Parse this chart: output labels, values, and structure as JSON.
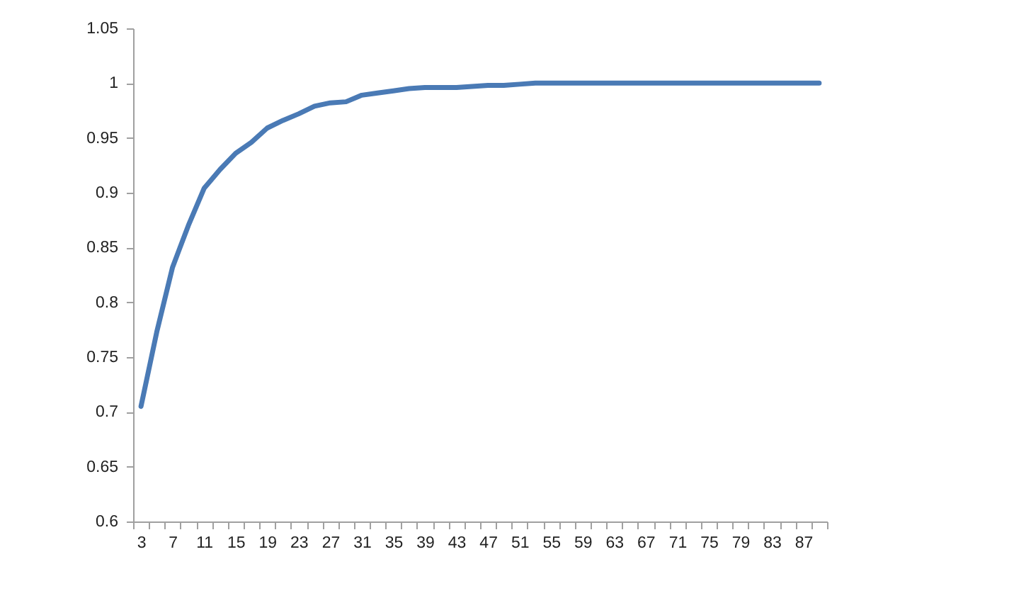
{
  "chart_data": {
    "type": "line",
    "categories": [
      "3",
      null,
      "7",
      null,
      "11",
      null,
      "15",
      null,
      "19",
      null,
      "23",
      null,
      "27",
      null,
      "31",
      null,
      "35",
      null,
      "39",
      null,
      "43",
      null,
      "47",
      null,
      "51",
      null,
      "55",
      null,
      "59",
      null,
      "63",
      null,
      "67",
      null,
      "71",
      null,
      "75",
      null,
      "79",
      null,
      "83",
      null,
      "87",
      null
    ],
    "series": [
      {
        "color": "#4a7ab5",
        "values": [
          0.705,
          0.773,
          0.832,
          0.87,
          0.904,
          0.921,
          0.936,
          0.946,
          0.959,
          0.966,
          0.972,
          0.979,
          0.982,
          0.983,
          0.989,
          0.991,
          0.993,
          0.995,
          0.996,
          0.996,
          0.996,
          0.997,
          0.998,
          0.998,
          0.999,
          1,
          1,
          1,
          1,
          1,
          1,
          1,
          1,
          1,
          1,
          1,
          1,
          1,
          1,
          1,
          1,
          1,
          1,
          1
        ]
      }
    ],
    "ylim": [
      0.6,
      1.05
    ],
    "yticks": [
      0.6,
      0.65,
      0.7,
      0.75,
      0.8,
      0.85,
      0.9,
      0.95,
      1,
      1.05
    ],
    "grid": false,
    "legend": false
  }
}
